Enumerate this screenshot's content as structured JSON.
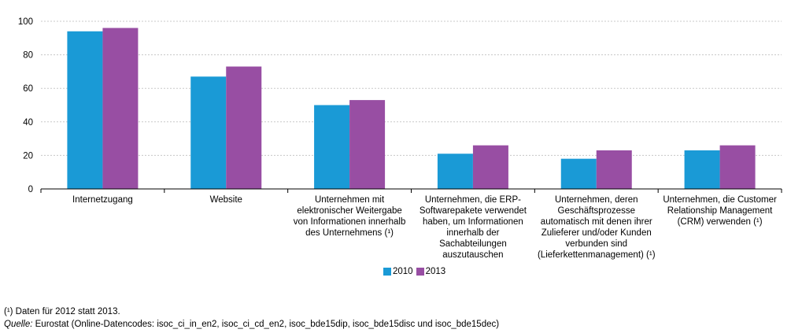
{
  "chart_data": {
    "type": "bar",
    "title": "",
    "xlabel": "",
    "ylabel": "",
    "ylim": [
      0,
      100
    ],
    "yticks": [
      0,
      20,
      40,
      60,
      80,
      100
    ],
    "grid": true,
    "legend_position": "bottom",
    "categories": [
      "Internetzugang",
      "Website",
      "Unternehmen mit elektronischer Weitergabe von Informationen innerhalb des Unternehmens (¹)",
      "Unternehmen, die ERP-Softwarepakete verwendet haben, um Informationen innerhalb der Sachabteilungen auszutauschen",
      "Unternehmen, deren Geschäftsprozesse automatisch mit denen ihrer Zulieferer und/oder Kunden verbunden sind (Lieferkettenmanagement) (¹)",
      "Unternehmen, die Customer Relationship Management (CRM) verwenden (¹)"
    ],
    "category_lines": [
      [
        "Internetzugang"
      ],
      [
        "Website"
      ],
      [
        "Unternehmen mit",
        "elektronischer Weitergabe",
        "von Informationen innerhalb",
        "des Unternehmens (¹)"
      ],
      [
        "Unternehmen, die ERP-",
        "Softwarepakete verwendet",
        "haben, um Informationen",
        "innerhalb der",
        "Sachabteilungen",
        "auszutauschen"
      ],
      [
        "Unternehmen, deren",
        "Geschäftsprozesse",
        "automatisch mit denen ihrer",
        "Zulieferer und/oder Kunden",
        "verbunden sind",
        "(Lieferkettenmanagement) (¹)"
      ],
      [
        "Unternehmen, die Customer",
        "Relationship Management",
        "(CRM) verwenden (¹)"
      ]
    ],
    "series": [
      {
        "name": "2010",
        "color": "#1a9ad6",
        "values": [
          94,
          67,
          50,
          21,
          18,
          23
        ]
      },
      {
        "name": "2013",
        "color": "#984ea3",
        "values": [
          96,
          73,
          53,
          26,
          23,
          26
        ]
      }
    ]
  },
  "footnote": "(¹) Daten für 2012 statt 2013.",
  "source": {
    "label": "Quelle:",
    "text": " Eurostat (Online-Datencodes: isoc_ci_in_en2, isoc_ci_cd_en2, isoc_bde15dip, isoc_bde15disc und isoc_bde15dec)"
  }
}
